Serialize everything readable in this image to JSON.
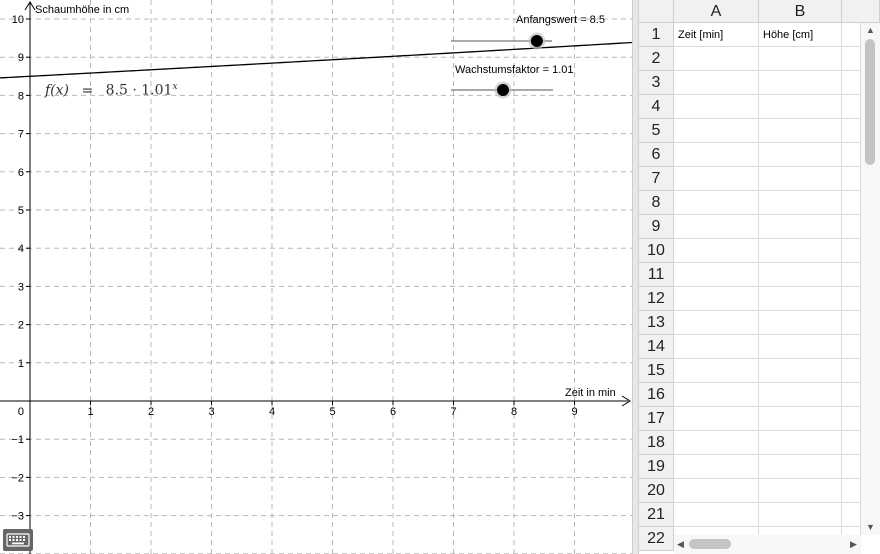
{
  "graph": {
    "y_axis_label": "Schaumhöhe in cm",
    "x_axis_label": "Zeit in min",
    "origin_label": "0",
    "x_ticks": [
      "1",
      "2",
      "3",
      "4",
      "5",
      "6",
      "7",
      "8",
      "9"
    ],
    "y_ticks": [
      "10",
      "9",
      "8",
      "7",
      "6",
      "5",
      "4",
      "3",
      "2",
      "1",
      "−1",
      "−2",
      "−3"
    ],
    "formula": {
      "fx": "f(x)",
      "equals": "=",
      "base": "8.5 · 1.01",
      "exponent": "x"
    }
  },
  "sliders": [
    {
      "label": "Anfangswert = 8.5",
      "value": 8.5,
      "min": 0,
      "max": 10
    },
    {
      "label": "Wachstumsfaktor = 1.01",
      "value": 1.01,
      "min": 0.5,
      "max": 1.5
    }
  ],
  "function": {
    "a": 8.5,
    "b": 1.01
  },
  "spreadsheet": {
    "columns": [
      "A",
      "B"
    ],
    "rows": [
      "1",
      "2",
      "3",
      "4",
      "5",
      "6",
      "7",
      "8",
      "9",
      "10",
      "11",
      "12",
      "13",
      "14",
      "15",
      "16",
      "17",
      "18",
      "19",
      "20",
      "21",
      "22"
    ],
    "cells": {
      "A1": "Zeit [min]",
      "B1": "Höhe [cm]"
    }
  },
  "icons": {
    "keyboard": "keyboard-icon"
  },
  "colors": {
    "grid": "#b8b8b8",
    "curve": "#000000",
    "slider_point": "#000000",
    "header_bg": "#f1f1f1"
  }
}
